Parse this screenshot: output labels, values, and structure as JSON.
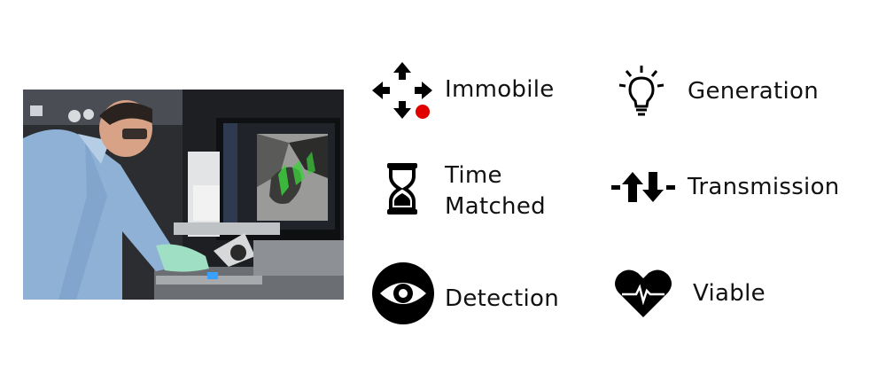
{
  "photo": {
    "subject": "scientist-at-microscope-workstation"
  },
  "features": [
    {
      "id": "immobile",
      "label": "Immobile",
      "icon": "move-arrows-icon",
      "accent": "#e00000"
    },
    {
      "id": "time-matched",
      "label_line1": "Time",
      "label_line2": "Matched",
      "icon": "hourglass-icon"
    },
    {
      "id": "detection",
      "label": "Detection",
      "icon": "eye-icon"
    },
    {
      "id": "generation",
      "label": "Generation",
      "icon": "lightbulb-icon"
    },
    {
      "id": "transmission",
      "label": "Transmission",
      "icon": "transfer-arrows-icon"
    },
    {
      "id": "viable",
      "label": "Viable",
      "icon": "heart-pulse-icon"
    }
  ],
  "colors": {
    "icon": "#000000",
    "text": "#111111",
    "dot": "#e00000",
    "fluorescence": "#3ccf3c"
  }
}
